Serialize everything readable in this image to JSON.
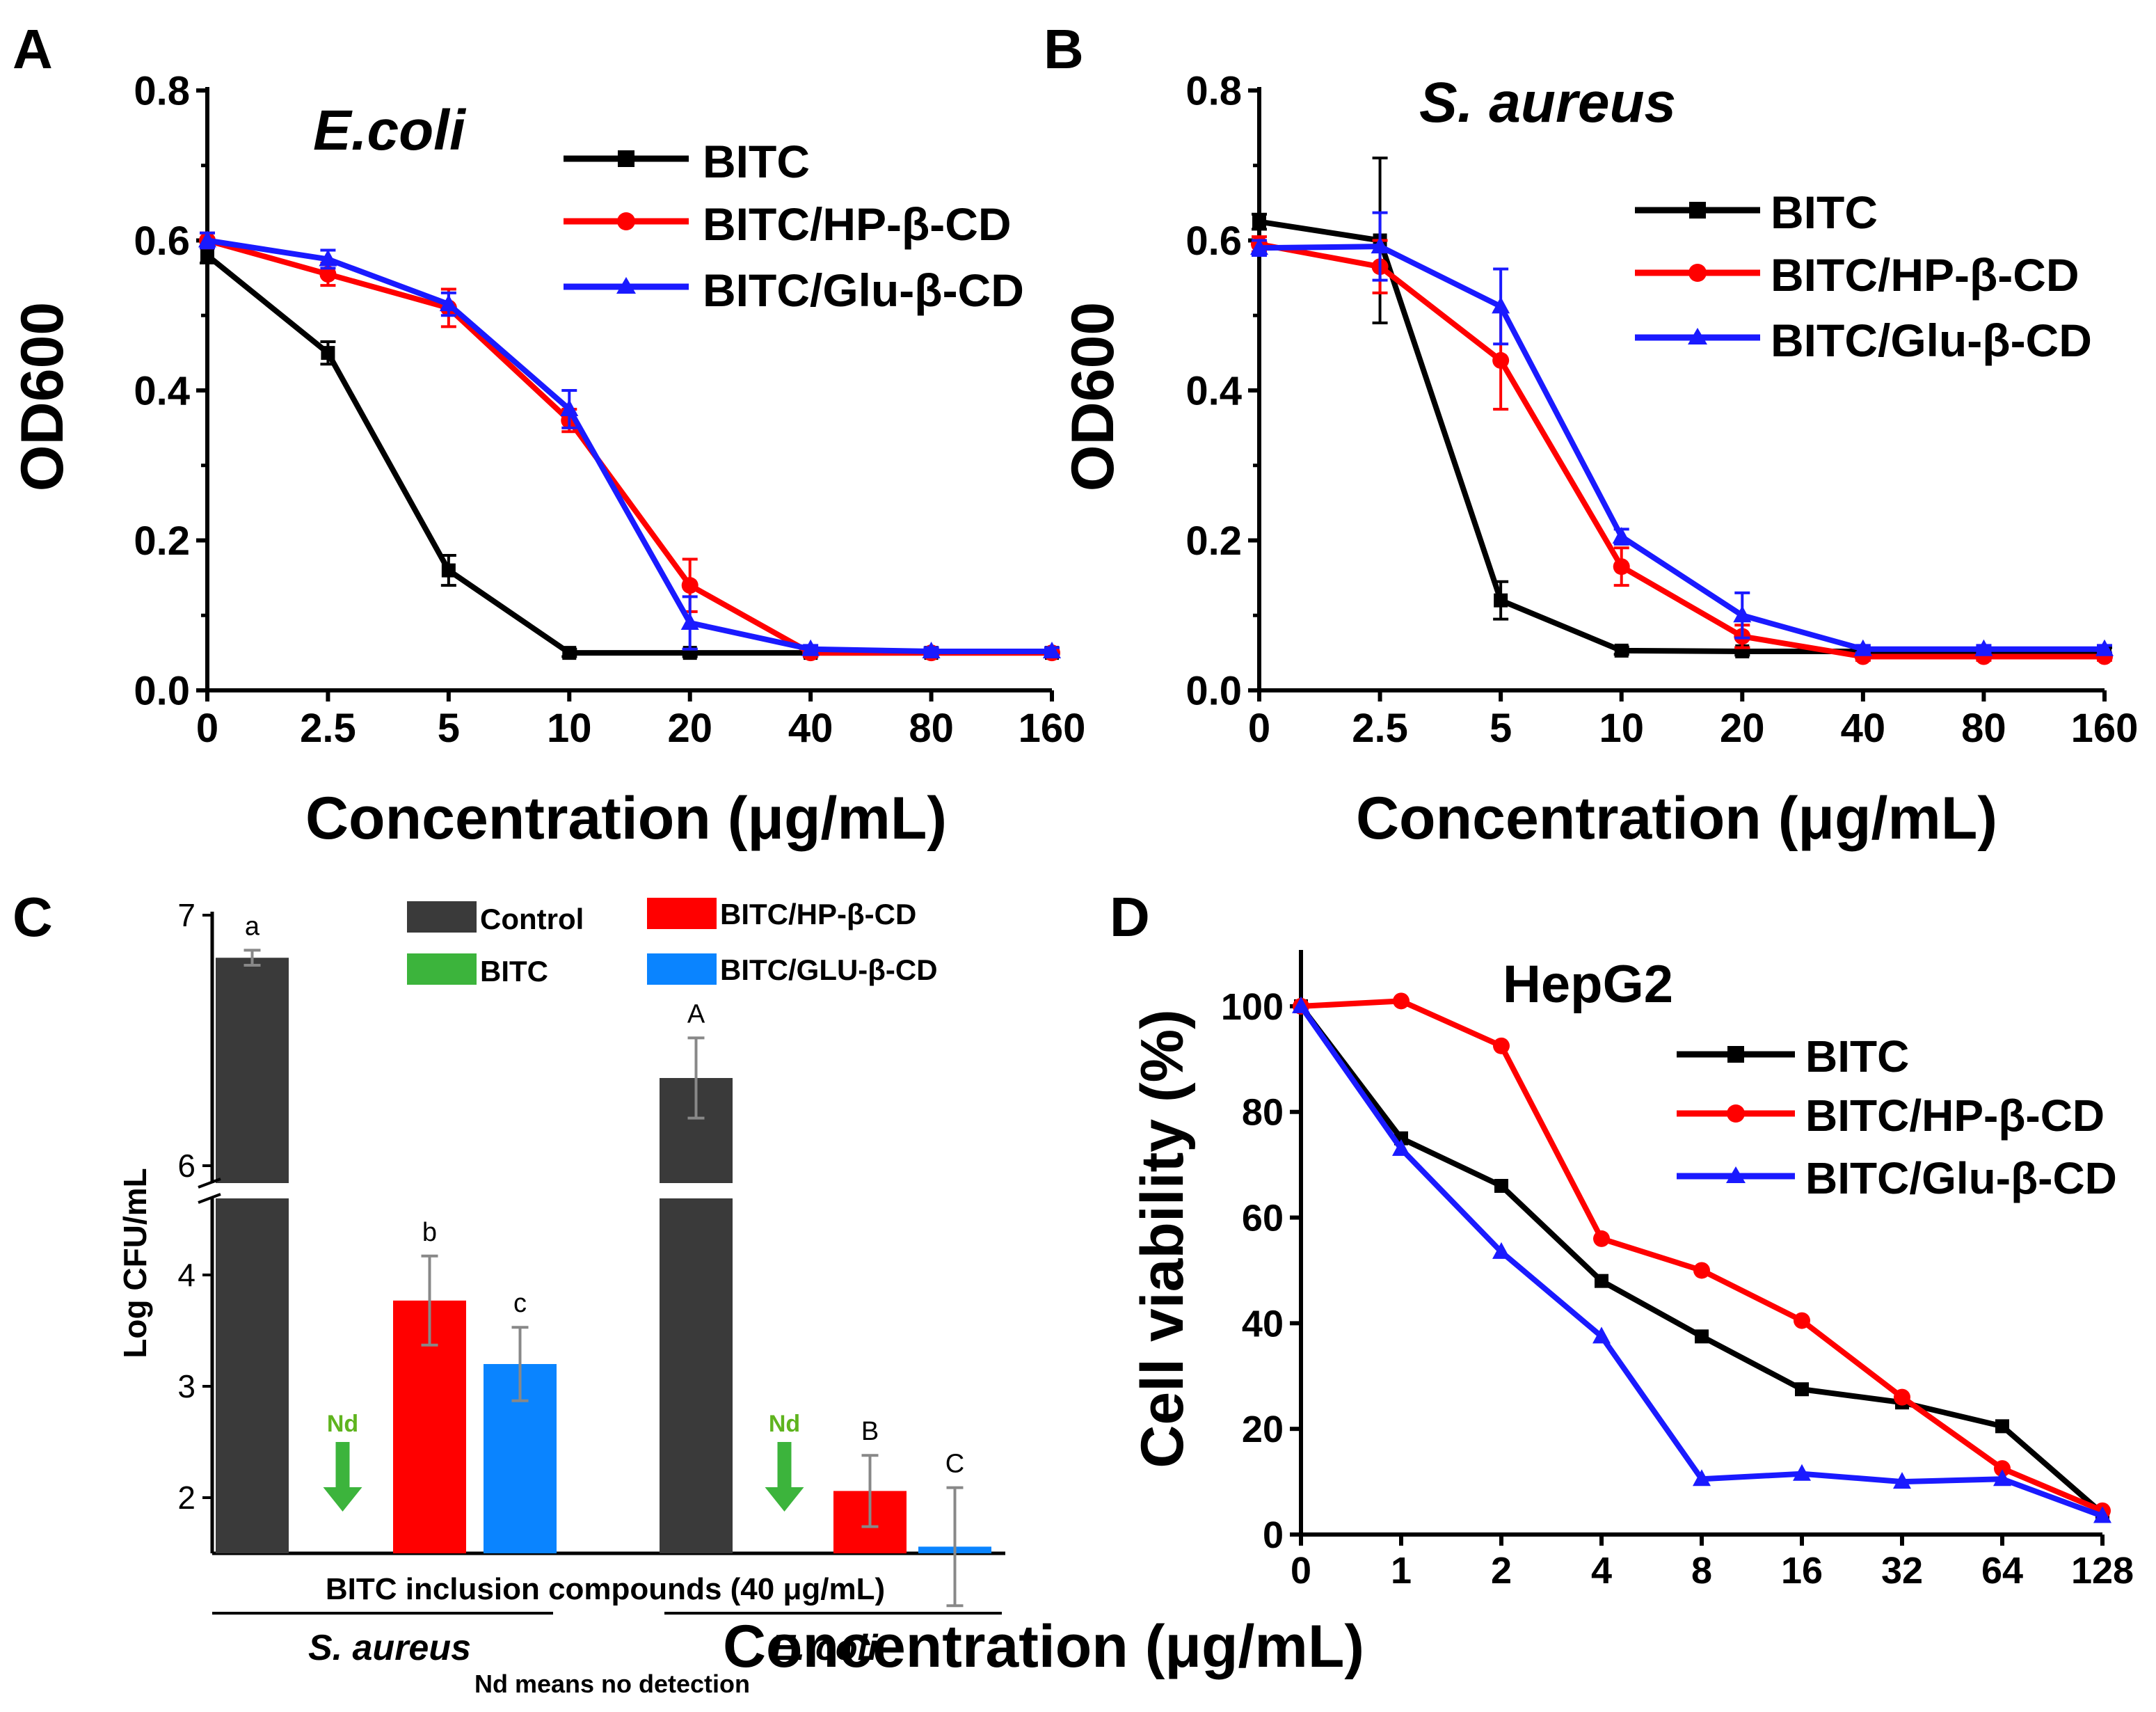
{
  "colors": {
    "black": "#000000",
    "red": "#ff0000",
    "blue": "#1a1aff",
    "dark": "#3a3a3a",
    "green": "#3cb43c",
    "lightblue": "#0a84ff",
    "ndgreen": "#5fb41e"
  },
  "legend_line": {
    "s1": "BITC",
    "s2": "BITC/HP-β-CD",
    "s3": "BITC/Glu-β-CD"
  },
  "chart_data": [
    {
      "panel": "A",
      "type": "line",
      "title": "E.coli",
      "xlabel": "Concentration (μg/mL)",
      "ylabel": "OD600",
      "categories": [
        "0",
        "2.5",
        "5",
        "10",
        "20",
        "40",
        "80",
        "160"
      ],
      "ylim": [
        0,
        0.8
      ],
      "yticks": [
        "0.0",
        "0.2",
        "0.4",
        "0.6",
        "0.8"
      ],
      "series": [
        {
          "name": "BITC",
          "color": "#000000",
          "marker": "square",
          "values": [
            0.58,
            0.45,
            0.16,
            0.05,
            0.05,
            0.05,
            0.05,
            0.05
          ],
          "errors": [
            0.01,
            0.015,
            0.02,
            0.005,
            0.005,
            0.005,
            0.005,
            0.005
          ]
        },
        {
          "name": "BITC/HP-β-CD",
          "color": "#ff0000",
          "marker": "circle",
          "values": [
            0.6,
            0.555,
            0.51,
            0.36,
            0.14,
            0.05,
            0.05,
            0.05
          ],
          "errors": [
            0.01,
            0.015,
            0.025,
            0.015,
            0.035,
            0.005,
            0.005,
            0.005
          ]
        },
        {
          "name": "BITC/Glu-β-CD",
          "color": "#1a1aff",
          "marker": "triangle",
          "values": [
            0.6,
            0.575,
            0.515,
            0.375,
            0.09,
            0.055,
            0.052,
            0.052
          ],
          "errors": [
            0.01,
            0.012,
            0.015,
            0.025,
            0.035,
            0.005,
            0.005,
            0.005
          ]
        }
      ]
    },
    {
      "panel": "B",
      "type": "line",
      "title": "S. aureus",
      "xlabel": "Concentration (μg/mL)",
      "ylabel": "OD600",
      "categories": [
        "0",
        "2.5",
        "5",
        "10",
        "20",
        "40",
        "80",
        "160"
      ],
      "ylim": [
        0,
        0.8
      ],
      "yticks": [
        "0.0",
        "0.2",
        "0.4",
        "0.6",
        "0.8"
      ],
      "series": [
        {
          "name": "BITC",
          "color": "#000000",
          "marker": "square",
          "values": [
            0.625,
            0.6,
            0.12,
            0.053,
            0.052,
            0.052,
            0.052,
            0.052
          ],
          "errors": [
            0.01,
            0.11,
            0.025,
            0.005,
            0.005,
            0.005,
            0.005,
            0.005
          ]
        },
        {
          "name": "BITC/HP-β-CD",
          "color": "#ff0000",
          "marker": "circle",
          "values": [
            0.595,
            0.565,
            0.44,
            0.165,
            0.072,
            0.045,
            0.045,
            0.045
          ],
          "errors": [
            0.01,
            0.035,
            0.065,
            0.025,
            0.015,
            0.005,
            0.005,
            0.005
          ]
        },
        {
          "name": "BITC/Glu-β-CD",
          "color": "#1a1aff",
          "marker": "triangle",
          "values": [
            0.59,
            0.592,
            0.512,
            0.205,
            0.1,
            0.055,
            0.055,
            0.055
          ],
          "errors": [
            0.01,
            0.045,
            0.05,
            0.01,
            0.03,
            0.005,
            0.005,
            0.005
          ]
        }
      ]
    },
    {
      "panel": "C",
      "type": "bar",
      "ylabel": "Log CFU/mL",
      "yticks": [
        "2",
        "3",
        "4",
        "6",
        "7"
      ],
      "axis_break": "between 4 and 6",
      "legend": [
        "Control",
        "BITC",
        "BITC/HP-β-CD",
        "BITC/GLU-β-CD"
      ],
      "xlabel": "BITC inclusion compounds (40 μg/mL)",
      "groups": [
        "S. aureus",
        "E. coli"
      ],
      "note": "Nd means no detection",
      "nd_label": "Nd",
      "series": [
        {
          "name": "Control",
          "values": [
            6.83,
            6.35
          ],
          "errors": [
            0.03,
            0.16
          ],
          "labels": [
            "a",
            "A"
          ]
        },
        {
          "name": "BITC",
          "values": [
            null,
            null
          ],
          "labels": [
            "Nd",
            "Nd"
          ]
        },
        {
          "name": "BITC/HP-β-CD",
          "values": [
            3.77,
            2.06
          ],
          "errors": [
            0.4,
            0.32
          ],
          "labels": [
            "b",
            "B"
          ]
        },
        {
          "name": "BITC/GLU-β-CD",
          "values": [
            3.2,
            1.56
          ],
          "errors": [
            0.33,
            0.53
          ],
          "labels": [
            "c",
            "C"
          ]
        }
      ]
    },
    {
      "panel": "D",
      "type": "line",
      "title": "HepG2",
      "xlabel": "Concentration (μg/mL)",
      "ylabel": "Cell viability (%)",
      "categories": [
        "0",
        "1",
        "2",
        "4",
        "8",
        "16",
        "32",
        "64",
        "128"
      ],
      "ylim": [
        0,
        110
      ],
      "yticks": [
        "0",
        "20",
        "40",
        "60",
        "80",
        "100"
      ],
      "series": [
        {
          "name": "BITC",
          "color": "#000000",
          "marker": "square",
          "values": [
            100,
            75,
            66,
            48,
            37.5,
            27.5,
            25,
            20.5,
            4
          ]
        },
        {
          "name": "BITC/HP-β-CD",
          "color": "#ff0000",
          "marker": "circle",
          "values": [
            100,
            101,
            92.5,
            56,
            50,
            40.5,
            26,
            12.5,
            4.5
          ]
        },
        {
          "name": "BITC/Glu-β-CD",
          "color": "#1a1aff",
          "marker": "triangle",
          "values": [
            100,
            73,
            53.5,
            37.5,
            10.5,
            11.5,
            10,
            10.5,
            3.5
          ]
        }
      ]
    }
  ]
}
